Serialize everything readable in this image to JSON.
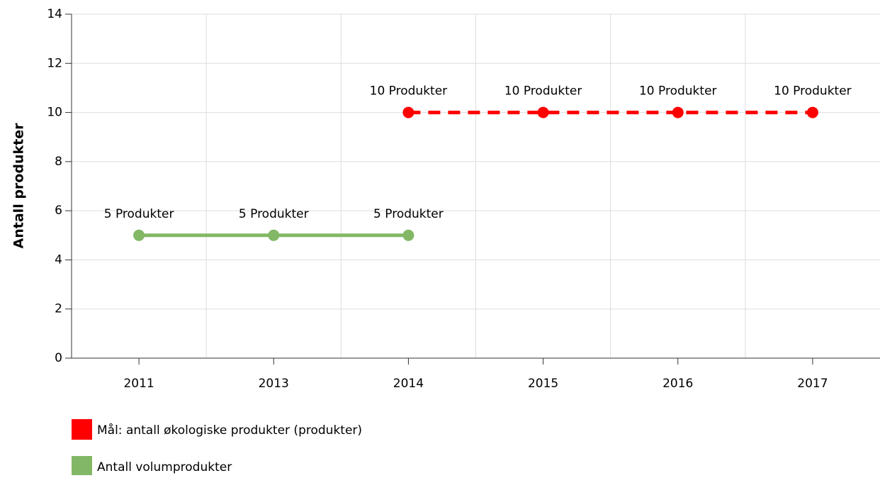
{
  "chart_data": {
    "type": "line",
    "categories": [
      "2011",
      "2013",
      "2014",
      "2015",
      "2016",
      "2017"
    ],
    "y_label": "Antall produkter",
    "series": [
      {
        "name": "Mål: antall økologiske produkter (produkter)",
        "color": "#ff0000",
        "linestyle": "dashed",
        "values": [
          null,
          null,
          10,
          10,
          10,
          10
        ],
        "value_labels": [
          null,
          null,
          "10 Produkter",
          "10 Produkter",
          "10 Produkter",
          "10 Produkter"
        ]
      },
      {
        "name": "Antall volumprodukter",
        "color": "#82b865",
        "linestyle": "solid",
        "values": [
          5,
          5,
          5,
          null,
          null,
          null
        ],
        "value_labels": [
          "5 Produkter",
          "5 Produkter",
          "5 Produkter",
          null,
          null,
          null
        ]
      }
    ],
    "ylim": [
      0,
      14
    ],
    "yticks": [
      0,
      2,
      4,
      6,
      8,
      10,
      12,
      14
    ],
    "grid": true,
    "legend": "bottom"
  }
}
